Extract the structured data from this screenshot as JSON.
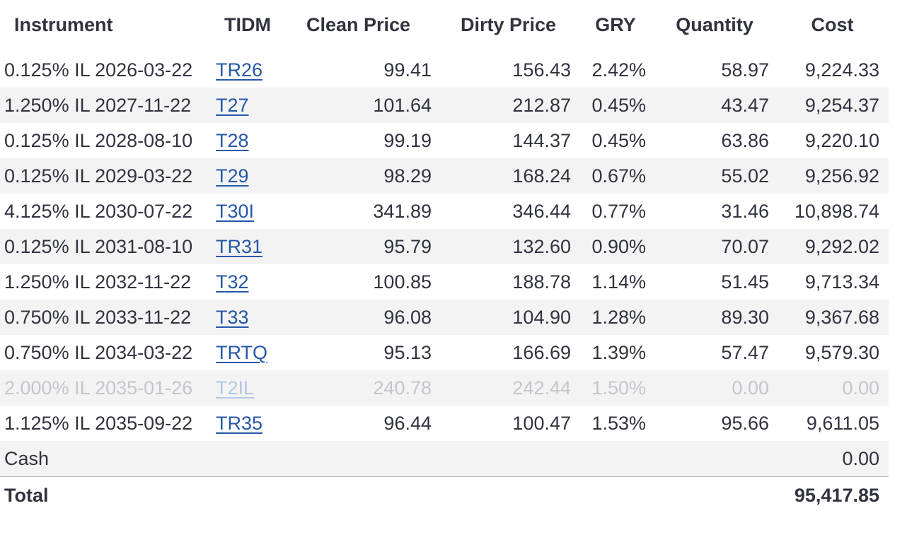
{
  "colors": {
    "text": "#31333f",
    "stripe": "#f3f3f4",
    "link": "#2457a7",
    "disabled_text": "#c4c6cb",
    "disabled_link": "#b3c7e2",
    "total_border": "#bdbdbd"
  },
  "table": {
    "columns": {
      "instrument": "Instrument",
      "tidm": "TIDM",
      "clean_price": "Clean Price",
      "dirty_price": "Dirty Price",
      "gry": "GRY",
      "quantity": "Quantity",
      "cost": "Cost"
    },
    "rows": [
      {
        "instrument": "0.125% IL 2026-03-22",
        "tidm": "TR26",
        "clean_price": "99.41",
        "dirty_price": "156.43",
        "gry": "2.42%",
        "quantity": "58.97",
        "cost": "9,224.33"
      },
      {
        "instrument": "1.250% IL 2027-11-22",
        "tidm": "T27",
        "clean_price": "101.64",
        "dirty_price": "212.87",
        "gry": "0.45%",
        "quantity": "43.47",
        "cost": "9,254.37"
      },
      {
        "instrument": "0.125% IL 2028-08-10",
        "tidm": "T28",
        "clean_price": "99.19",
        "dirty_price": "144.37",
        "gry": "0.45%",
        "quantity": "63.86",
        "cost": "9,220.10"
      },
      {
        "instrument": "0.125% IL 2029-03-22",
        "tidm": "T29",
        "clean_price": "98.29",
        "dirty_price": "168.24",
        "gry": "0.67%",
        "quantity": "55.02",
        "cost": "9,256.92"
      },
      {
        "instrument": "4.125% IL 2030-07-22",
        "tidm": "T30I",
        "clean_price": "341.89",
        "dirty_price": "346.44",
        "gry": "0.77%",
        "quantity": "31.46",
        "cost": "10,898.74"
      },
      {
        "instrument": "0.125% IL 2031-08-10",
        "tidm": "TR31",
        "clean_price": "95.79",
        "dirty_price": "132.60",
        "gry": "0.90%",
        "quantity": "70.07",
        "cost": "9,292.02"
      },
      {
        "instrument": "1.250% IL 2032-11-22",
        "tidm": "T32",
        "clean_price": "100.85",
        "dirty_price": "188.78",
        "gry": "1.14%",
        "quantity": "51.45",
        "cost": "9,713.34"
      },
      {
        "instrument": "0.750% IL 2033-11-22",
        "tidm": "T33",
        "clean_price": "96.08",
        "dirty_price": "104.90",
        "gry": "1.28%",
        "quantity": "89.30",
        "cost": "9,367.68"
      },
      {
        "instrument": "0.750% IL 2034-03-22",
        "tidm": "TRTQ",
        "clean_price": "95.13",
        "dirty_price": "166.69",
        "gry": "1.39%",
        "quantity": "57.47",
        "cost": "9,579.30"
      },
      {
        "instrument": "2.000% IL 2035-01-26",
        "tidm": "T2IL",
        "clean_price": "240.78",
        "dirty_price": "242.44",
        "gry": "1.50%",
        "quantity": "0.00",
        "cost": "0.00",
        "disabled": true
      },
      {
        "instrument": "1.125% IL 2035-09-22",
        "tidm": "TR35",
        "clean_price": "96.44",
        "dirty_price": "100.47",
        "gry": "1.53%",
        "quantity": "95.66",
        "cost": "9,611.05"
      }
    ],
    "cash_row": {
      "label": "Cash",
      "cost": "0.00"
    },
    "total_row": {
      "label": "Total",
      "cost": "95,417.85"
    }
  }
}
